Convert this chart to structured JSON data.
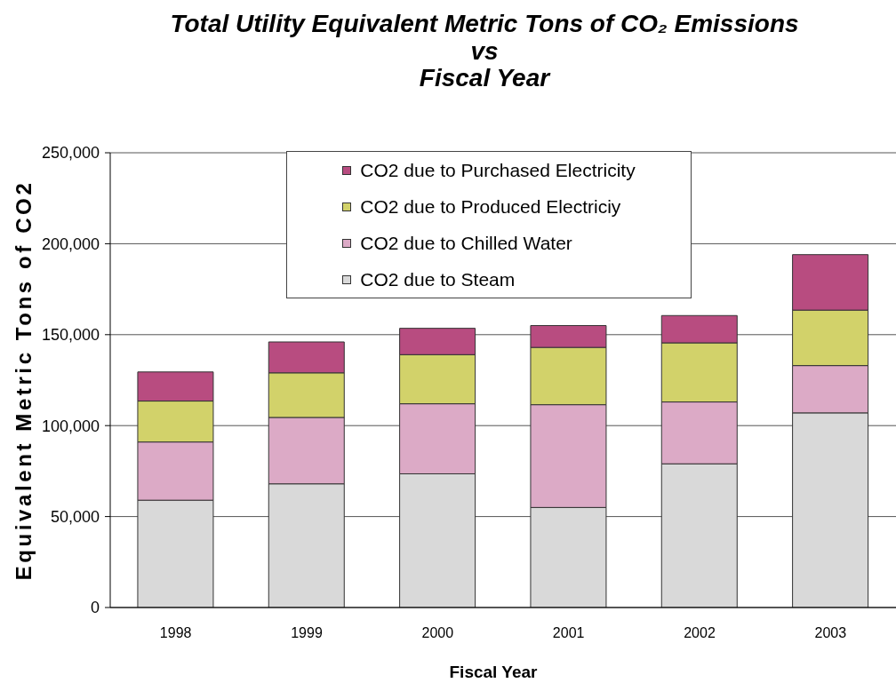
{
  "chart_data": {
    "type": "bar",
    "title": "Total Utility Equivalent Metric Tons of CO₂ Emissions\nvs\nFiscal Year",
    "xlabel": "Fiscal Year",
    "ylabel": "Equivalent Metric Tons of CO2",
    "categories": [
      "1998",
      "1999",
      "2000",
      "2001",
      "2002",
      "2003"
    ],
    "series": [
      {
        "name": "CO2 due to Steam",
        "color": "#d9d9d9",
        "values": [
          59000,
          68000,
          73500,
          55000,
          79000,
          107000
        ]
      },
      {
        "name": "CO2 due to Chilled Water",
        "color": "#dcaac6",
        "values": [
          32000,
          36500,
          38500,
          56500,
          34000,
          26000
        ]
      },
      {
        "name": "CO2 due to Produced Electriciy",
        "color": "#d2d26a",
        "values": [
          22500,
          24500,
          27000,
          31500,
          32500,
          30500
        ]
      },
      {
        "name": "CO2 due to Purchased Electricity",
        "color": "#b84c80",
        "values": [
          16000,
          17000,
          14500,
          12000,
          15000,
          30500
        ]
      }
    ],
    "stacked": true,
    "ylim": [
      0,
      250000
    ],
    "yticks": [
      0,
      {
        "value": 50000,
        "label": "50,000"
      },
      {
        "value": 100000,
        "label": "100,000"
      },
      {
        "value": 150000,
        "label": "150,000"
      },
      {
        "value": 200000,
        "label": "200,000"
      },
      {
        "value": 250000,
        "label": "250,000"
      }
    ],
    "grid": "y",
    "legend": "top"
  }
}
